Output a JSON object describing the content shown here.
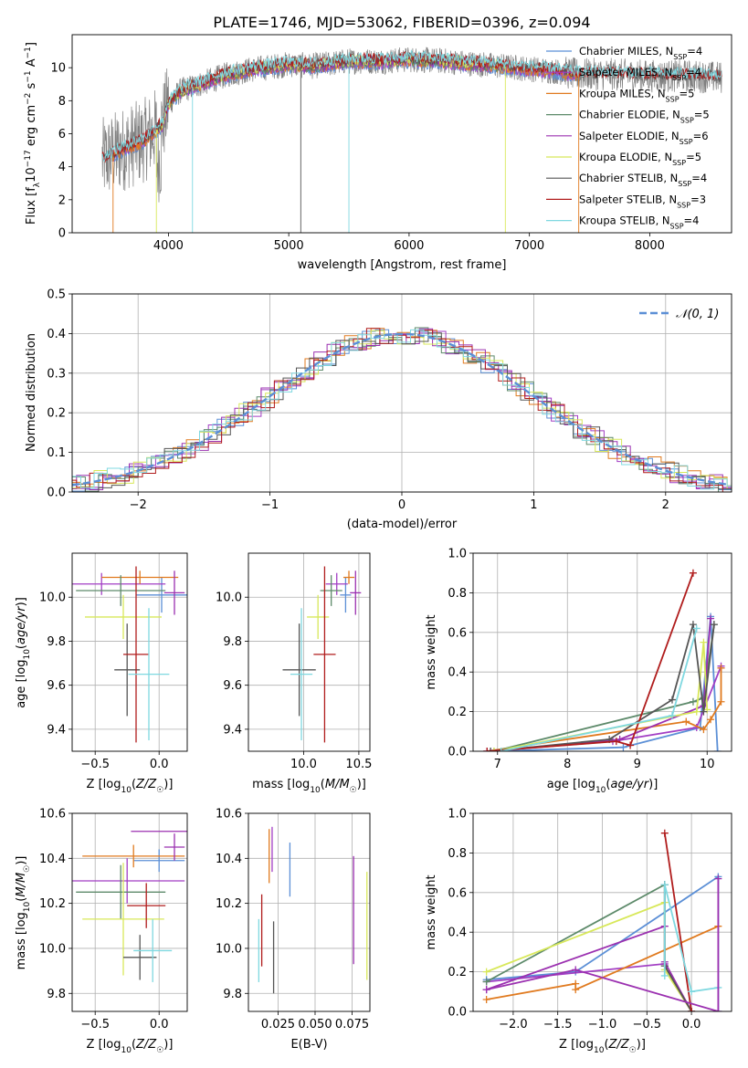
{
  "figure_title": "PLATE=1746, MJD=53062, FIBERID=0396, z=0.094",
  "colors": {
    "Chabrier MILES": "#5b8fd6",
    "Salpeter MILES": "#a23ec4",
    "Kroupa MILES": "#e07a1f",
    "Chabrier ELODIE": "#5d8a6a",
    "Salpeter ELODIE": "#9b30b0",
    "Kroupa ELODIE": "#d8e85a",
    "Chabrier STELIB": "#555555",
    "Salpeter STELIB": "#b01c1c",
    "Kroupa STELIB": "#7fd8e0",
    "data": "#808080"
  },
  "chart_data": [
    {
      "id": "spectrum",
      "type": "line",
      "title": "PLATE=1746, MJD=53062, FIBERID=0396, z=0.094",
      "xlabel": "wavelength [Angstrom, rest frame]",
      "ylabel": "Flux [f_λ 10^-17 erg cm^-2 s^-1 A^-1]",
      "xlim": [
        3200,
        8680
      ],
      "ylim": [
        0,
        12
      ],
      "xticks": [
        4000,
        5000,
        6000,
        7000,
        8000
      ],
      "yticks": [
        0,
        2,
        4,
        6,
        8,
        10
      ],
      "legend_position": "right",
      "legend": [
        {
          "label": "Chabrier MILES",
          "nssp": "4"
        },
        {
          "label": "Salpeter MILES",
          "nssp": "4"
        },
        {
          "label": "Kroupa MILES",
          "nssp": "5"
        },
        {
          "label": "Chabrier ELODIE",
          "nssp": "5"
        },
        {
          "label": "Salpeter ELODIE",
          "nssp": "6"
        },
        {
          "label": "Kroupa ELODIE",
          "nssp": "5"
        },
        {
          "label": "Chabrier STELIB",
          "nssp": "4"
        },
        {
          "label": "Salpeter STELIB",
          "nssp": "3"
        },
        {
          "label": "Kroupa STELIB",
          "nssp": "4"
        }
      ],
      "model_continuum": {
        "x": [
          3450,
          3600,
          3800,
          3950,
          4000,
          4100,
          4300,
          4500,
          4700,
          5000,
          5200,
          5500,
          5800,
          6000,
          6300,
          6600,
          6900,
          7200,
          7400,
          7700,
          8000,
          8300,
          8600
        ],
        "y": [
          4.4,
          5.0,
          5.6,
          6.6,
          7.8,
          8.6,
          9.1,
          9.6,
          9.9,
          10.2,
          10.1,
          10.4,
          10.4,
          10.5,
          10.4,
          10.2,
          10.0,
          9.8,
          9.6,
          9.6,
          9.5,
          9.5,
          9.4
        ]
      }
    },
    {
      "id": "residuals",
      "type": "histogram",
      "xlabel": "(data-model)/error",
      "ylabel": "Normed distribution",
      "xlim": [
        -2.5,
        2.5
      ],
      "ylim": [
        0,
        0.5
      ],
      "xticks": [
        -2,
        -1,
        0,
        1,
        2
      ],
      "yticks": [
        0.0,
        0.1,
        0.2,
        0.3,
        0.4,
        0.5
      ],
      "grid": true,
      "reference": {
        "label": "N(0,1)",
        "style": "dashed",
        "color": "#5b8fd6"
      },
      "legend_position": "top-right"
    },
    {
      "id": "age_vs_Z",
      "type": "errorbar",
      "xlabel": "Z [log10(Z/Z☉)]",
      "ylabel": "age [log10(age/yr)]",
      "xlim": [
        -0.68,
        0.22
      ],
      "ylim": [
        9.3,
        10.2
      ],
      "xticks": [
        -0.5,
        0.0
      ],
      "yticks": [
        9.4,
        9.6,
        9.8,
        10.0
      ],
      "grid": true,
      "points": [
        {
          "model": "Chabrier MILES",
          "x": 0.02,
          "xerr": 0.2,
          "y": 10.01,
          "yerr": 0.08
        },
        {
          "model": "Salpeter MILES",
          "x": -0.45,
          "xerr": 0.5,
          "y": 10.06,
          "yerr": 0.05
        },
        {
          "model": "Kroupa MILES",
          "x": -0.15,
          "xerr": 0.3,
          "y": 10.09,
          "yerr": 0.03
        },
        {
          "model": "Chabrier ELODIE",
          "x": -0.3,
          "xerr": 0.35,
          "y": 10.03,
          "yerr": 0.07
        },
        {
          "model": "Salpeter ELODIE",
          "x": 0.12,
          "xerr": 0.08,
          "y": 10.02,
          "yerr": 0.1
        },
        {
          "model": "Kroupa ELODIE",
          "x": -0.28,
          "xerr": 0.3,
          "y": 9.91,
          "yerr": 0.1
        },
        {
          "model": "Chabrier STELIB",
          "x": -0.25,
          "xerr": 0.1,
          "y": 9.67,
          "yerr": 0.21
        },
        {
          "model": "Salpeter STELIB",
          "x": -0.18,
          "xerr": 0.1,
          "y": 9.74,
          "yerr": 0.4
        },
        {
          "model": "Kroupa STELIB",
          "x": -0.08,
          "xerr": 0.16,
          "y": 9.65,
          "yerr": 0.3
        }
      ]
    },
    {
      "id": "age_vs_mass",
      "type": "errorbar",
      "xlabel": "mass [log10(M/M☉)]",
      "ylabel": "",
      "xlim": [
        9.5,
        10.6
      ],
      "ylim": [
        9.3,
        10.2
      ],
      "xticks": [
        10.0,
        10.5
      ],
      "yticks": [
        9.4,
        9.6,
        9.8,
        10.0
      ],
      "grid": true,
      "points": [
        {
          "model": "Chabrier MILES",
          "x": 10.38,
          "xerr": 0.05,
          "y": 10.01,
          "yerr": 0.08
        },
        {
          "model": "Salpeter MILES",
          "x": 10.3,
          "xerr": 0.1,
          "y": 10.06,
          "yerr": 0.05
        },
        {
          "model": "Kroupa MILES",
          "x": 10.41,
          "xerr": 0.05,
          "y": 10.09,
          "yerr": 0.03
        },
        {
          "model": "Chabrier ELODIE",
          "x": 10.25,
          "xerr": 0.1,
          "y": 10.03,
          "yerr": 0.07
        },
        {
          "model": "Salpeter ELODIE",
          "x": 10.47,
          "xerr": 0.05,
          "y": 10.02,
          "yerr": 0.1
        },
        {
          "model": "Kroupa ELODIE",
          "x": 10.13,
          "xerr": 0.1,
          "y": 9.91,
          "yerr": 0.1
        },
        {
          "model": "Chabrier STELIB",
          "x": 9.96,
          "xerr": 0.15,
          "y": 9.67,
          "yerr": 0.21
        },
        {
          "model": "Salpeter STELIB",
          "x": 10.19,
          "xerr": 0.1,
          "y": 9.74,
          "yerr": 0.4
        },
        {
          "model": "Kroupa STELIB",
          "x": 9.98,
          "xerr": 0.1,
          "y": 9.65,
          "yerr": 0.3
        }
      ]
    },
    {
      "id": "weight_vs_age",
      "type": "line",
      "xlabel": "age [log10(age/yr)]",
      "ylabel": "mass weight",
      "xlim": [
        6.65,
        10.35
      ],
      "ylim": [
        0,
        1
      ],
      "xticks": [
        7,
        8,
        9,
        10
      ],
      "yticks": [
        0.0,
        0.2,
        0.4,
        0.6,
        0.8,
        1.0
      ],
      "grid": true,
      "series": [
        {
          "model": "Chabrier MILES",
          "x": [
            6.9,
            8.8,
            9.9,
            10.05,
            10.15
          ],
          "y": [
            0.0,
            0.02,
            0.12,
            0.68,
            0.0
          ]
        },
        {
          "model": "Salpeter MILES",
          "x": [
            6.85,
            8.65,
            9.85,
            10.2,
            10.2
          ],
          "y": [
            0.0,
            0.05,
            0.12,
            0.43,
            0.42
          ]
        },
        {
          "model": "Kroupa MILES",
          "x": [
            6.85,
            9.7,
            9.95,
            10.05,
            10.2,
            10.2
          ],
          "y": [
            0.0,
            0.15,
            0.11,
            0.16,
            0.25,
            0.42
          ]
        },
        {
          "model": "Chabrier ELODIE",
          "x": [
            6.95,
            9.8,
            9.95,
            10.1
          ],
          "y": [
            0.0,
            0.25,
            0.27,
            0.64
          ]
        },
        {
          "model": "Salpeter ELODIE",
          "x": [
            6.85,
            8.75,
            9.95,
            10.05
          ],
          "y": [
            0.0,
            0.06,
            0.23,
            0.67
          ]
        },
        {
          "model": "Kroupa ELODIE",
          "x": [
            6.95,
            9.85,
            9.95,
            10.0
          ],
          "y": [
            0.0,
            0.2,
            0.55,
            0.21
          ]
        },
        {
          "model": "Chabrier STELIB",
          "x": [
            6.9,
            8.6,
            9.5,
            9.8,
            9.95,
            10.1
          ],
          "y": [
            0.0,
            0.06,
            0.26,
            0.64,
            0.2,
            0.64
          ]
        },
        {
          "model": "Salpeter STELIB",
          "x": [
            6.85,
            8.7,
            8.9,
            9.8
          ],
          "y": [
            0.0,
            0.05,
            0.03,
            0.9
          ]
        },
        {
          "model": "Kroupa STELIB",
          "x": [
            7.05,
            9.5,
            9.85
          ],
          "y": [
            0.0,
            0.18,
            0.62
          ]
        }
      ]
    },
    {
      "id": "mass_vs_Z",
      "type": "errorbar",
      "xlabel": "Z [log10(Z/Z☉)]",
      "ylabel": "mass [log10(M/M☉)]",
      "xlim": [
        -0.68,
        0.22
      ],
      "ylim": [
        9.72,
        10.6
      ],
      "xticks": [
        -0.5,
        0.0
      ],
      "yticks": [
        9.8,
        10.0,
        10.2,
        10.4,
        10.6
      ],
      "grid": true,
      "points": [
        {
          "model": "Chabrier MILES",
          "x": 0.0,
          "xerr": 0.2,
          "y": 10.39,
          "yerr": 0.05
        },
        {
          "model": "Salpeter MILES",
          "x": -0.25,
          "xerr": 0.45,
          "y": 10.3,
          "yerr": 0.1
        },
        {
          "model": "Kroupa MILES",
          "x": -0.2,
          "xerr": 0.4,
          "y": 10.41,
          "yerr": 0.05
        },
        {
          "model": "Chabrier ELODIE",
          "x": -0.3,
          "xerr": 0.35,
          "y": 10.25,
          "yerr": 0.12
        },
        {
          "model": "Salpeter ELODIE",
          "x": 0.12,
          "xerr": 0.08,
          "y": 10.45,
          "yerr": 0.06
        },
        {
          "model": "Kroupa ELODIE",
          "x": -0.28,
          "xerr": 0.32,
          "y": 10.13,
          "yerr": 0.25
        },
        {
          "model": "Chabrier STELIB",
          "x": -0.15,
          "xerr": 0.13,
          "y": 9.96,
          "yerr": 0.1
        },
        {
          "model": "Salpeter STELIB",
          "x": -0.1,
          "xerr": 0.15,
          "y": 10.19,
          "yerr": 0.1
        },
        {
          "model": "Kroupa STELIB",
          "x": -0.05,
          "xerr": 0.15,
          "y": 9.99,
          "yerr": 0.14
        },
        {
          "model": "Salpeter ELODIE",
          "x": 0.0,
          "xerr": 0.22,
          "y": 10.52,
          "yerr": 0.0
        }
      ]
    },
    {
      "id": "mass_vs_ebv",
      "type": "errorbar",
      "xlabel": "E(B-V)",
      "ylabel": "",
      "xlim": [
        0.005,
        0.087
      ],
      "ylim": [
        9.72,
        10.6
      ],
      "xticks": [
        0.025,
        0.05,
        0.075
      ],
      "xtick_labels": [
        "0.025",
        "0.050",
        "0.075"
      ],
      "yticks": [
        9.8,
        10.0,
        10.2,
        10.4,
        10.6
      ],
      "grid": true,
      "points": [
        {
          "model": "Chabrier MILES",
          "x": 0.033,
          "y": 10.35,
          "yerr": 0.12
        },
        {
          "model": "Kroupa MILES",
          "x": 0.019,
          "y": 10.41,
          "yerr": 0.12
        },
        {
          "model": "Salpeter ELODIE",
          "x": 0.076,
          "y": 10.17,
          "yerr": 0.24
        },
        {
          "model": "Kroupa ELODIE",
          "x": 0.085,
          "y": 10.1,
          "yerr": 0.24
        },
        {
          "model": "Chabrier STELIB",
          "x": 0.022,
          "y": 9.96,
          "yerr": 0.16
        },
        {
          "model": "Salpeter STELIB",
          "x": 0.014,
          "y": 10.08,
          "yerr": 0.16
        },
        {
          "model": "Kroupa STELIB",
          "x": 0.012,
          "y": 9.99,
          "yerr": 0.14
        },
        {
          "model": "Salpeter MILES",
          "x": 0.021,
          "y": 10.44,
          "yerr": 0.1
        }
      ]
    },
    {
      "id": "weight_vs_Z",
      "type": "line",
      "xlabel": "Z [log10(Z/Z☉)]",
      "ylabel": "mass weight",
      "xlim": [
        -2.45,
        0.45
      ],
      "ylim": [
        0,
        1
      ],
      "xticks": [
        -2.0,
        -1.5,
        -1.0,
        -0.5,
        0.0
      ],
      "yticks": [
        0.0,
        0.2,
        0.4,
        0.6,
        0.8,
        1.0
      ],
      "grid": true,
      "series": [
        {
          "model": "Chabrier MILES",
          "x": [
            -2.3,
            -1.3,
            0.3,
            0.3
          ],
          "y": [
            0.16,
            0.2,
            0.68,
            0.0
          ]
        },
        {
          "model": "Salpeter MILES",
          "x": [
            -2.3,
            -0.3,
            0.0
          ],
          "y": [
            0.15,
            0.24,
            0.0
          ]
        },
        {
          "model": "Kroupa MILES",
          "x": [
            -2.3,
            -1.3,
            -1.3,
            0.3
          ],
          "y": [
            0.06,
            0.14,
            0.11,
            0.43
          ]
        },
        {
          "model": "Chabrier ELODIE",
          "x": [
            -2.3,
            -0.3,
            -0.3,
            0.0
          ],
          "y": [
            0.15,
            0.64,
            0.23,
            0.0
          ]
        },
        {
          "model": "Salpeter ELODIE",
          "x": [
            -2.3,
            -0.3,
            -0.3,
            0.0
          ],
          "y": [
            0.11,
            0.43,
            0.25,
            0.0
          ]
        },
        {
          "model": "Kroupa ELODIE",
          "x": [
            -2.3,
            -0.3,
            -0.3,
            0.0
          ],
          "y": [
            0.2,
            0.55,
            0.21,
            0.0
          ]
        },
        {
          "model": "Chabrier STELIB",
          "x": [
            -0.3,
            -0.3,
            0.0
          ],
          "y": [
            0.64,
            0.23,
            0.0
          ]
        },
        {
          "model": "Salpeter STELIB",
          "x": [
            -0.3,
            0.0
          ],
          "y": [
            0.9,
            0.0
          ]
        },
        {
          "model": "Kroupa STELIB",
          "x": [
            -0.3,
            -0.3,
            0.0,
            0.3
          ],
          "y": [
            0.18,
            0.64,
            0.1,
            0.12
          ]
        },
        {
          "model": "Salpeter ELODIE",
          "x": [
            -2.3,
            -1.3,
            0.3,
            0.3
          ],
          "y": [
            0.11,
            0.21,
            0.0,
            0.67
          ]
        }
      ]
    }
  ]
}
